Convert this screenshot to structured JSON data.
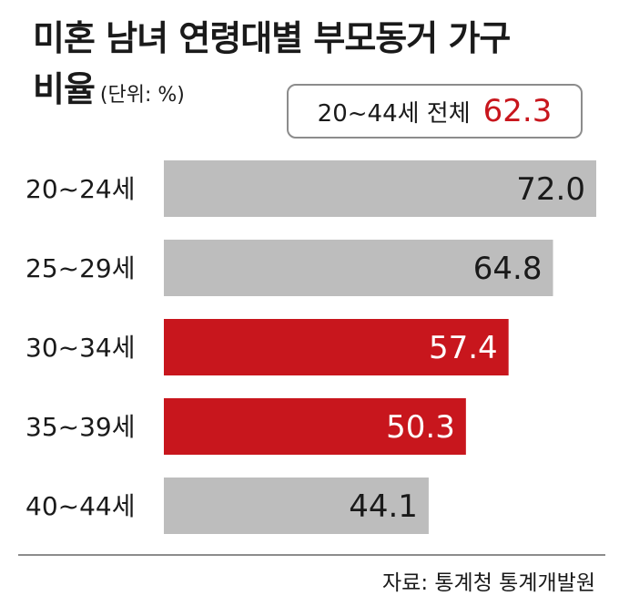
{
  "title": {
    "line1": "미혼 남녀 연령대별 부모동거 가구",
    "line2": "비율",
    "unit": "(단위: %)"
  },
  "summary": {
    "label": "20~44세 전체",
    "value": "62.3"
  },
  "source": "자료: 통계청 통계개발원",
  "colors": {
    "highlight": "#c8161d",
    "neutral": "#bdbdbd",
    "text_dark": "#1a1a1a",
    "text_light": "#ffffff"
  },
  "chart_data": {
    "type": "bar",
    "orientation": "horizontal",
    "categories": [
      "20~24세",
      "25~29세",
      "30~34세",
      "35~39세",
      "40~44세"
    ],
    "values": [
      72.0,
      64.8,
      57.4,
      50.3,
      44.1
    ],
    "value_labels": [
      "72.0",
      "64.8",
      "57.4",
      "50.3",
      "44.1"
    ],
    "highlighted": [
      false,
      false,
      true,
      true,
      false
    ],
    "xlim": [
      0,
      72
    ],
    "grid": false,
    "legend": "none"
  }
}
